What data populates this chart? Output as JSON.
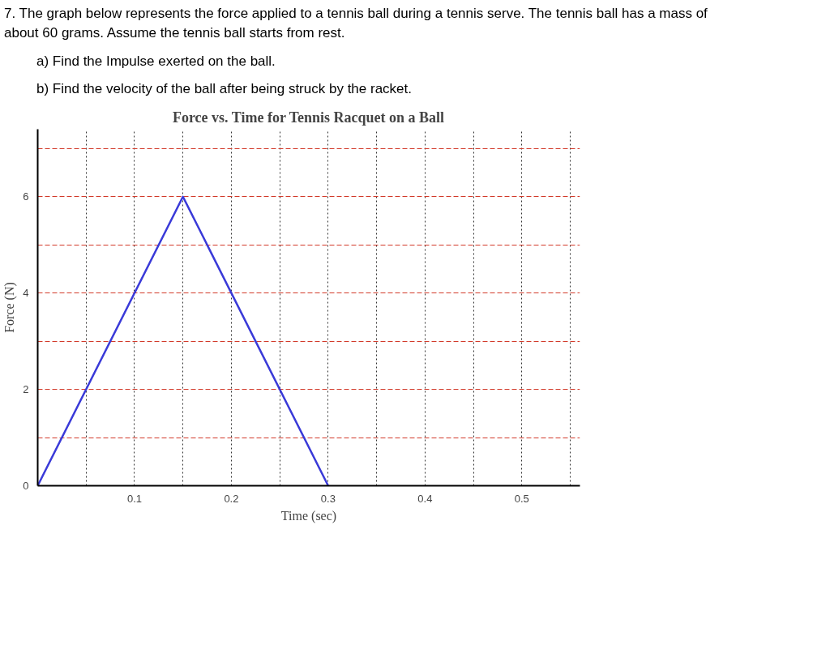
{
  "chart_data": {
    "type": "line",
    "title": "Force vs. Time for Tennis Racquet on a Ball",
    "xlabel": "Time (sec)",
    "ylabel": "Force (N)",
    "x": [
      0,
      0.15,
      0.3
    ],
    "series": [
      {
        "color": "#3a3ad8",
        "values": [
          0,
          6,
          0
        ]
      }
    ],
    "xlim": [
      0,
      0.56
    ],
    "ylim": [
      0,
      7.4
    ],
    "xticks": [
      {
        "value": 0.05,
        "label": null
      },
      0.1,
      {
        "value": 0.15,
        "label": null
      },
      0.2,
      {
        "value": 0.25,
        "label": null
      },
      0.3,
      {
        "value": 0.35,
        "label": null
      },
      0.4,
      {
        "value": 0.45,
        "label": null
      },
      0.5,
      {
        "value": 0.55,
        "label": null
      }
    ],
    "yticks": [
      0,
      {
        "value": 1,
        "label": null
      },
      2,
      {
        "value": 3,
        "label": null
      },
      4,
      {
        "value": 5,
        "label": null
      },
      6,
      {
        "value": 7,
        "label": null
      }
    ],
    "grid": true,
    "marker": "none",
    "line_style": "solid",
    "annotations": [
      "7. The graph below represents the force applied to a tennis ball during a tennis serve. The tennis ball has a mass of about 60 grams. Assume the tennis ball starts from rest.",
      "a) Find the Impulse exerted on the ball.",
      "b) Find the velocity of the ball after being struck by the racket."
    ]
  }
}
